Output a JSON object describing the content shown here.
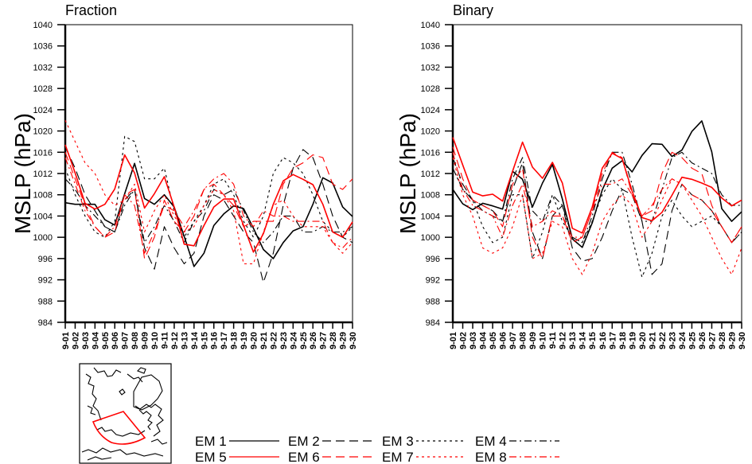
{
  "chart_data": [
    {
      "type": "line",
      "title": "Fraction",
      "xlabel": "",
      "ylabel": "MSLP (hPa)",
      "ylim": [
        984,
        1040
      ],
      "yticks": [
        984,
        988,
        992,
        996,
        1000,
        1004,
        1008,
        1012,
        1016,
        1020,
        1024,
        1028,
        1032,
        1036,
        1040
      ],
      "categories": [
        "9-01",
        "9-02",
        "9-03",
        "9-04",
        "9-05",
        "9-06",
        "9-07",
        "9-08",
        "9-09",
        "9-10",
        "9-11",
        "9-12",
        "9-13",
        "9-14",
        "9-15",
        "9-16",
        "9-17",
        "9-18",
        "9-19",
        "9-20",
        "9-21",
        "9-22",
        "9-23",
        "9-24",
        "9-25",
        "9-26",
        "9-27",
        "9-28",
        "9-29",
        "9-30"
      ],
      "grid": false,
      "series": [
        {
          "name": "EM 1",
          "color": "#000000",
          "dash": "solid",
          "values": [
            1006.5,
            1006.2,
            1006.2,
            1006.2,
            1003.3,
            1002.3,
            1008.2,
            1013.9,
            1007.3,
            1006.2,
            1008,
            1005.7,
            1000.2,
            994.5,
            997,
            1002.2,
            1004.4,
            1005.9,
            1005.4,
            1001.7,
            997.7,
            996,
            999,
            1001.2,
            1002,
            1006.2,
            1011.2,
            1010.2,
            1005.7,
            1003.9
          ]
        },
        {
          "name": "EM 2",
          "color": "#000000",
          "dash": "long",
          "values": [
            1017,
            1013,
            1008,
            1005,
            1002,
            1001,
            1007,
            1009,
            998,
            994,
            1002,
            998,
            995,
            997,
            1004,
            1008,
            1007,
            1004,
            1001,
            999,
            991.5,
            997,
            1006,
            1013,
            1016.5,
            1015,
            1010,
            1004,
            1000,
            999
          ]
        },
        {
          "name": "EM 3",
          "color": "#000000",
          "dash": "short",
          "values": [
            1013,
            1008,
            1004,
            1001,
            1000,
            1003,
            1019,
            1018,
            1011,
            1011,
            1013,
            1005,
            1000,
            1003,
            1006,
            1010,
            1011,
            1008,
            1003,
            1000,
            1004,
            1012,
            1015,
            1014,
            1012,
            1008,
            1003,
            1001,
            1000,
            1002
          ]
        },
        {
          "name": "EM 4",
          "color": "#000000",
          "dash": "dashdot",
          "values": [
            1011,
            1009,
            1006,
            1004,
            1002,
            1001,
            1006,
            1009,
            999,
            1002,
            1006,
            1003,
            999,
            1003,
            1005,
            1009,
            1008,
            1009,
            1005,
            1001,
            999,
            1001,
            1004,
            1004,
            1001,
            1001,
            1002,
            1001,
            1001,
            1002
          ]
        },
        {
          "name": "EM 5",
          "color": "#ff0000",
          "dash": "solid",
          "values": [
            1017.4,
            1012.1,
            1006.4,
            1005.3,
            1006.2,
            1009.1,
            1015.5,
            1012.1,
            1005.5,
            1008.2,
            1011.4,
            1005.7,
            998.7,
            998.4,
            1002.2,
            1005.7,
            1007.2,
            1007.2,
            1002.2,
            997.2,
            1000.7,
            1006.2,
            1010.6,
            1011.8,
            1010.9,
            1009.9,
            1006.2,
            1001,
            1000,
            1002.9
          ]
        },
        {
          "name": "EM 6",
          "color": "#ff0000",
          "dash": "long",
          "values": [
            1016,
            1011,
            1006,
            1002,
            1000,
            1001,
            1008,
            1009,
            996,
            1000,
            1007,
            1003,
            1001,
            1004,
            1009,
            1010,
            1008,
            1006,
            1002,
            1003,
            1003,
            1003,
            1010,
            1013,
            1014,
            1015.5,
            1015,
            1010,
            1009,
            1011
          ]
        },
        {
          "name": "EM 7",
          "color": "#ff0000",
          "dash": "short",
          "values": [
            1022,
            1018,
            1014,
            1012,
            1008,
            1006,
            1007,
            1010,
            1001,
            1005,
            1008,
            1004,
            1001,
            1002,
            1006,
            1009,
            1008,
            1005,
            995,
            995,
            1001,
            1006,
            1007,
            1004,
            1002,
            1002,
            1002,
            999,
            997,
            999
          ]
        },
        {
          "name": "EM 8",
          "color": "#ff0000",
          "dash": "dashdot",
          "values": [
            1015,
            1010,
            1005,
            1002,
            1000,
            1002,
            1008,
            1006,
            997,
            1001,
            1006,
            1005,
            1002,
            1005,
            1009,
            1011,
            1012,
            1010,
            1004,
            1002,
            1005,
            1004,
            1004,
            1003,
            1003,
            1003,
            1003,
            999,
            998,
            1000
          ]
        }
      ]
    },
    {
      "type": "line",
      "title": "Binary",
      "xlabel": "",
      "ylabel": "MSLP (hPa)",
      "ylim": [
        984,
        1040
      ],
      "yticks": [
        984,
        988,
        992,
        996,
        1000,
        1004,
        1008,
        1012,
        1016,
        1020,
        1024,
        1028,
        1032,
        1036,
        1040
      ],
      "categories": [
        "9-01",
        "9-02",
        "9-03",
        "9-04",
        "9-05",
        "9-06",
        "9-07",
        "9-08",
        "9-09",
        "9-10",
        "9-11",
        "9-12",
        "9-13",
        "9-14",
        "9-15",
        "9-16",
        "9-17",
        "9-18",
        "9-19",
        "9-20",
        "9-21",
        "9-22",
        "9-23",
        "9-24",
        "9-25",
        "9-26",
        "9-27",
        "9-28",
        "9-29",
        "9-30"
      ],
      "grid": false,
      "series": [
        {
          "name": "EM 1",
          "color": "#000000",
          "dash": "solid",
          "values": [
            1009,
            1006.3,
            1005.2,
            1006.4,
            1005.9,
            1005.3,
            1012.4,
            1010.9,
            1005.7,
            1010.2,
            1013.7,
            1007.2,
            999.7,
            998.1,
            1002.7,
            1008.9,
            1013,
            1014.4,
            1012.3,
            1015.4,
            1017.6,
            1017.5,
            1015.2,
            1016.4,
            1019.9,
            1021.9,
            1016.1,
            1005.4,
            1003,
            1004.8
          ]
        },
        {
          "name": "EM 2",
          "color": "#000000",
          "dash": "long",
          "values": [
            1015,
            1010,
            1007,
            1006,
            1005,
            1003,
            1009,
            1014,
            1001,
            996,
            1004,
            1006,
            998,
            995.5,
            996,
            1000,
            1005,
            1009,
            1008,
            1003,
            993,
            995,
            1005,
            1010,
            1008,
            1007,
            1005,
            1002,
            999,
            1001
          ]
        },
        {
          "name": "EM 3",
          "color": "#000000",
          "dash": "short",
          "values": [
            1013,
            1009,
            1007,
            1002,
            999,
            1000,
            1008,
            1008,
            996,
            1001,
            1008,
            1003,
            1000,
            999,
            1003,
            1008,
            1011,
            1009,
            1000,
            992.5,
            997,
            1004,
            1007,
            1004,
            1002,
            1003,
            1004,
            1002,
            999,
            1001
          ]
        },
        {
          "name": "EM 4",
          "color": "#000000",
          "dash": "dashdot",
          "values": [
            1013,
            1009,
            1007,
            1005,
            1004,
            1003,
            1011,
            1015,
            1005,
            1003,
            1008,
            1006,
            1000,
            999,
            1004,
            1011,
            1016,
            1016,
            1010,
            1003,
            1003,
            1009,
            1015,
            1016,
            1014,
            1013,
            1012,
            1008,
            1006,
            1006
          ]
        },
        {
          "name": "EM 5",
          "color": "#ff0000",
          "dash": "solid",
          "values": [
            1018.8,
            1013.6,
            1008.5,
            1007.8,
            1008.1,
            1006.8,
            1012.4,
            1017.9,
            1013.2,
            1011.1,
            1014.1,
            1010.2,
            1001.7,
            1000.8,
            1005.7,
            1013,
            1015.8,
            1014.8,
            1008.7,
            1003.7,
            1003.1,
            1004.7,
            1007.9,
            1011.3,
            1010.9,
            1010.2,
            1009.4,
            1007.4,
            1005.9,
            1007
          ]
        },
        {
          "name": "EM 6",
          "color": "#ff0000",
          "dash": "long",
          "values": [
            1017,
            1011,
            1007,
            1006,
            1005,
            1002,
            1010,
            1013,
            1000,
            996,
            1004,
            1004,
            999,
            1000,
            1005,
            1012,
            1016,
            1015,
            1008,
            1004,
            1005,
            1012,
            1016,
            1015,
            1013,
            1012,
            1006,
            1002,
            999,
            1002
          ]
        },
        {
          "name": "EM 7",
          "color": "#ff0000",
          "dash": "short",
          "values": [
            1015,
            1008,
            1004,
            998,
            997,
            998,
            1002,
            1008,
            996,
            997,
            1003,
            1002,
            996,
            993,
            997,
            1003,
            1006,
            1008,
            1006,
            1000,
            1003,
            1007,
            1011,
            1010,
            1007,
            1004,
            1000,
            996,
            993,
            998
          ]
        },
        {
          "name": "EM 8",
          "color": "#ff0000",
          "dash": "dashdot",
          "values": [
            1016,
            1009,
            1006,
            1005,
            1004,
            1000,
            1006,
            1010,
            1002,
            1003,
            1005,
            1004,
            1000,
            1000,
            1005,
            1010,
            1010,
            1011,
            1008,
            1004,
            1006,
            1009,
            1011,
            1010,
            1008,
            1007,
            1005,
            1002,
            999,
            1002
          ]
        }
      ]
    }
  ],
  "legend": {
    "placement": "bottom-center",
    "entries": [
      {
        "label": "EM 1",
        "color": "#000000",
        "dash": "solid"
      },
      {
        "label": "EM 2",
        "color": "#000000",
        "dash": "long"
      },
      {
        "label": "EM 3",
        "color": "#000000",
        "dash": "short"
      },
      {
        "label": "EM 4",
        "color": "#000000",
        "dash": "dashdot"
      },
      {
        "label": "EM 5",
        "color": "#ff0000",
        "dash": "solid"
      },
      {
        "label": "EM 6",
        "color": "#ff0000",
        "dash": "long"
      },
      {
        "label": "EM 7",
        "color": "#ff0000",
        "dash": "short"
      },
      {
        "label": "EM 8",
        "color": "#ff0000",
        "dash": "dashdot"
      }
    ]
  },
  "inset_map": {
    "region_color": "#ff0000"
  }
}
